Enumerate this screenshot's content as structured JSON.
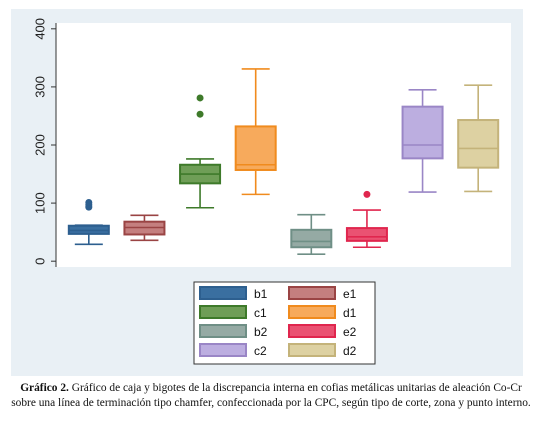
{
  "caption": {
    "label": "Gráfico 2.",
    "text": " Gráfico de caja y bigotes de la discrepancia interna en cofias metálicas unitarias de aleación Co-Cr sobre una línea de terminación tipo chamfer, confeccionada por la CPC, según tipo de corte, zona y punto interno."
  },
  "chart_data": {
    "type": "box",
    "ylim": [
      -10,
      410
    ],
    "yticks": [
      0,
      100,
      200,
      300,
      400
    ],
    "grid": false,
    "legend_position": "bottom",
    "series": [
      {
        "name": "b1",
        "color": "#2d5f8f",
        "fill": "#3a6fa0",
        "min": 29,
        "q1": 47,
        "median": 53,
        "q3": 61,
        "max": 62,
        "outliers": [
          93,
          97,
          101
        ]
      },
      {
        "name": "e1",
        "color": "#9a4444",
        "fill": "#c47f7f",
        "min": 36,
        "q1": 46,
        "median": 58,
        "q3": 68,
        "max": 79,
        "outliers": []
      },
      {
        "name": "c1",
        "color": "#3e7a2a",
        "fill": "#6f9e57",
        "min": 92,
        "q1": 134,
        "median": 150,
        "q3": 166,
        "max": 176,
        "outliers": [
          253,
          281
        ]
      },
      {
        "name": "d1",
        "color": "#f08b1e",
        "fill": "#f7aa5c",
        "min": 115,
        "q1": 157,
        "median": 166,
        "q3": 232,
        "max": 331,
        "outliers": []
      },
      {
        "name": "b2",
        "color": "#6f8f86",
        "fill": "#95aaa4",
        "min": 12,
        "q1": 24,
        "median": 34,
        "q3": 54,
        "max": 80,
        "outliers": []
      },
      {
        "name": "e2",
        "color": "#e0264e",
        "fill": "#ea5272",
        "min": 24,
        "q1": 35,
        "median": 42,
        "q3": 57,
        "max": 88,
        "outliers": [
          115
        ]
      },
      {
        "name": "c2",
        "color": "#9a86c6",
        "fill": "#bcaee0",
        "min": 119,
        "q1": 177,
        "median": 200,
        "q3": 266,
        "max": 295,
        "outliers": []
      },
      {
        "name": "d2",
        "color": "#c4b37a",
        "fill": "#ddd1a2",
        "min": 120,
        "q1": 161,
        "median": 194,
        "q3": 243,
        "max": 303,
        "outliers": []
      }
    ]
  }
}
